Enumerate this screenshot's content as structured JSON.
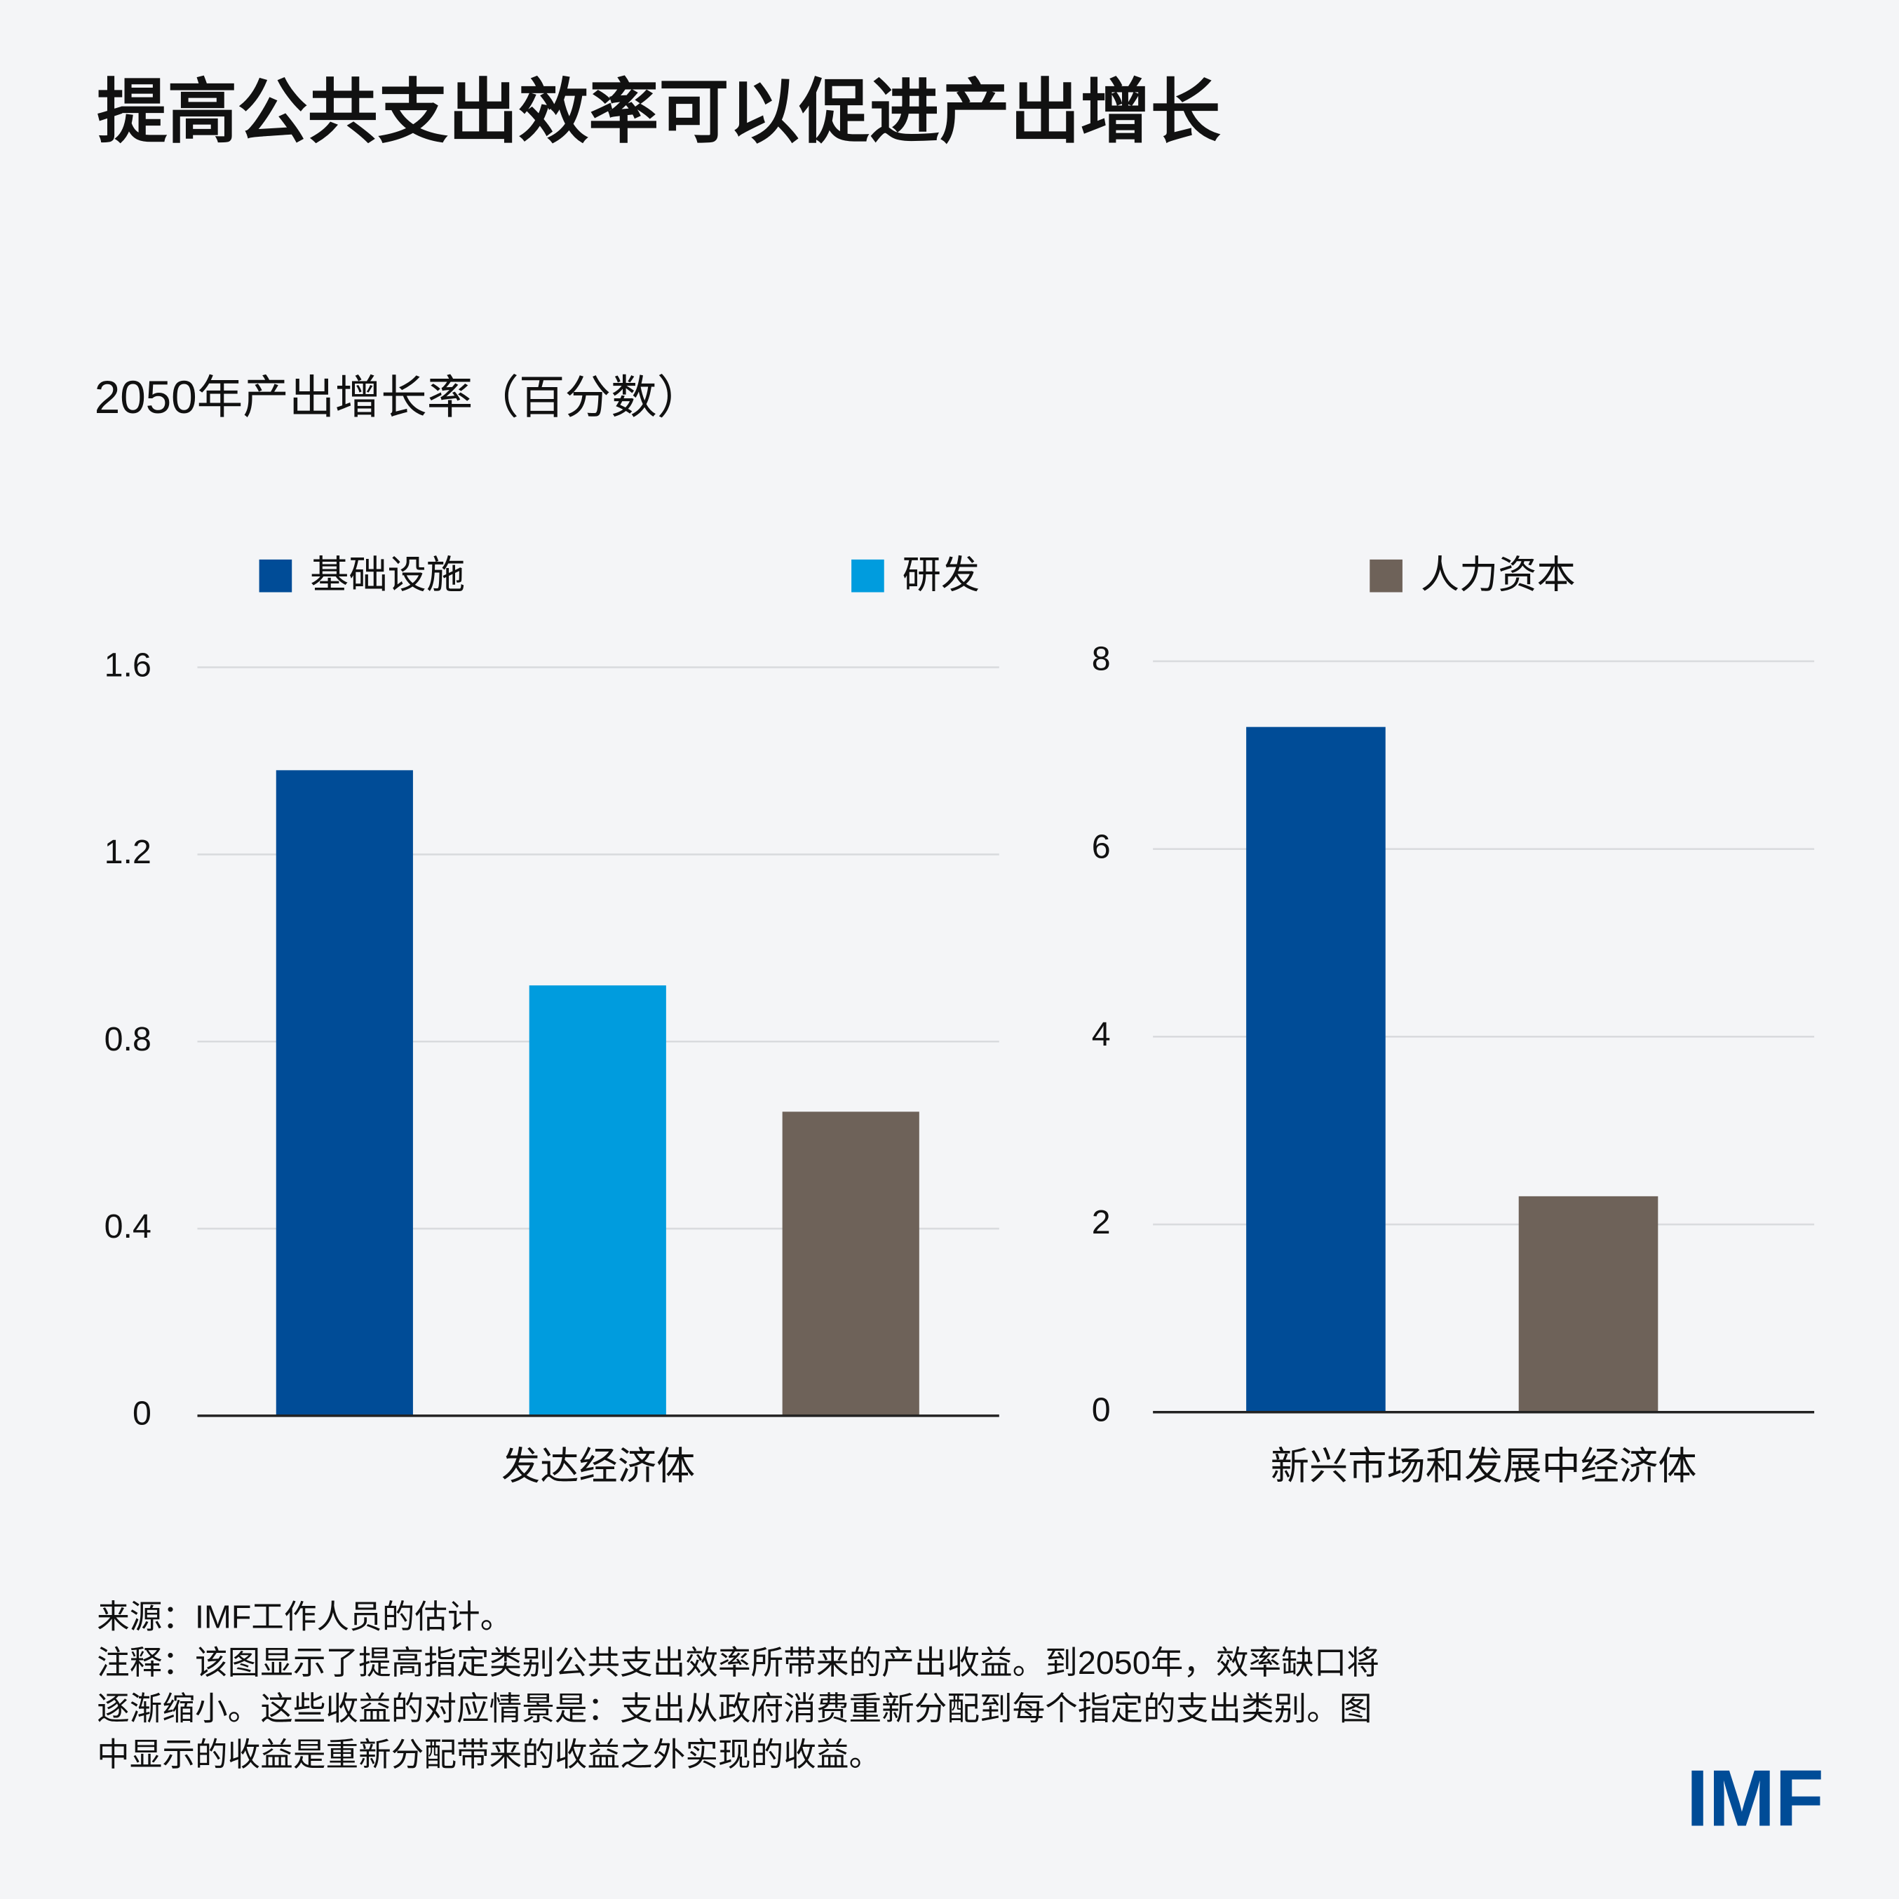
{
  "title": "提高公共支出效率可以促进产出增长",
  "subtitle": "2050年产出增长率（百分数）",
  "chart_data": [
    {
      "type": "bar",
      "categories": [
        "发达经济体"
      ],
      "series": [
        {
          "name": "基础设施",
          "color": "#004c97",
          "values": [
            1.38
          ]
        },
        {
          "name": "研发",
          "color": "#009cde",
          "values": [
            0.92
          ]
        },
        {
          "name": "人力资本",
          "color": "#6e6259",
          "values": [
            0.65
          ]
        }
      ],
      "ylim": [
        0,
        1.6
      ],
      "yticks": [
        0,
        0.4,
        0.8,
        1.2,
        1.6
      ],
      "grid": true
    },
    {
      "type": "bar",
      "categories": [
        "新兴市场和发展中经济体"
      ],
      "series": [
        {
          "name": "基础设施",
          "color": "#004c97",
          "values": [
            7.3
          ]
        },
        {
          "name": "人力资本",
          "color": "#6e6259",
          "values": [
            2.3
          ]
        }
      ],
      "ylim": [
        0,
        8
      ],
      "yticks": [
        0,
        2,
        4,
        6,
        8
      ],
      "grid": true
    }
  ],
  "source": "来源：IMF工作人员的估计。",
  "note": [
    "注释：该图显示了提高指定类别公共支出效率所带来的产出收益。到2050年，效率缺口将",
    "逐渐缩小。这些收益的对应情景是：支出从政府消费重新分配到每个指定的支出类别。图",
    "中显示的收益是重新分配带来的收益之外实现的收益。"
  ],
  "logo": "IMF"
}
